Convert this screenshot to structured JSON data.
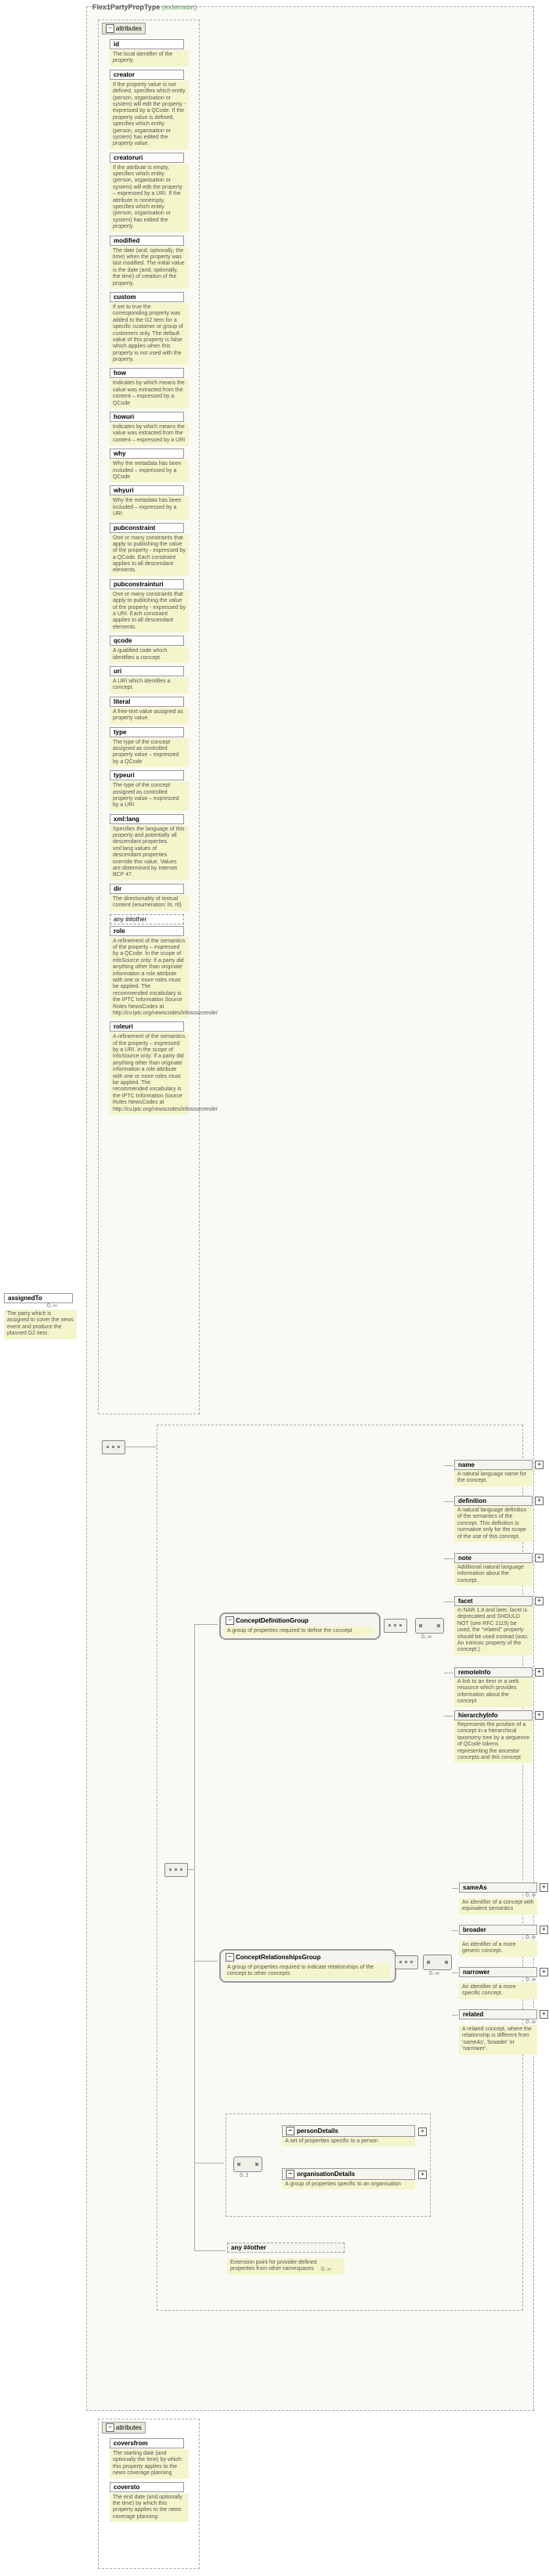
{
  "root": {
    "name": "assignedTo",
    "card": "0..∞",
    "desc": "The party which is assigned to cover the news event and produce the planned G2 item."
  },
  "header": {
    "type_name": "Flex1PartyPropType",
    "ext": "(extension)"
  },
  "attr_section": "attributes",
  "attrs": [
    {
      "n": "id",
      "d": "The local identifier of the property."
    },
    {
      "n": "creator",
      "d": "If the property value is not defined, specifies which entity (person, organisation or system) will edit the property - expressed by a QCode. If the property value is defined, specifies which entity (person, organisation or system) has edited the property value."
    },
    {
      "n": "creatoruri",
      "d": "If the attribute is empty, specifies which entity (person, organisation or system) will edit the property – expressed by a URI. If the attribute is nonempty, specifies which entity (person, organisation or system) has edited the property."
    },
    {
      "n": "modified",
      "d": "The date (and, optionally, the time) when the property was last modified. The initial value is the date (and, optionally, the time) of creation of the property."
    },
    {
      "n": "custom",
      "d": "If set to true the corresponding property was added to the G2 Item for a specific customer or group of customers only. The default value of this property is false which applies when this property is not used with the property."
    },
    {
      "n": "how",
      "d": "Indicates by which means the value was extracted from the content – expressed by a QCode"
    },
    {
      "n": "howuri",
      "d": "Indicates by which means the value was extracted from the content – expressed by a URI"
    },
    {
      "n": "why",
      "d": "Why the metadata has been included – expressed by a QCode"
    },
    {
      "n": "whyuri",
      "d": "Why the metadata has been included – expressed by a URI"
    },
    {
      "n": "pubconstraint",
      "d": "One or many constraints that apply to publishing the value of the property - expressed by a QCode. Each constraint applies to all descendant elements."
    },
    {
      "n": "pubconstrainturi",
      "d": "One or many constraints that apply to publishing the value of the property - expressed by a URI. Each constraint applies to all descendant elements."
    },
    {
      "n": "qcode",
      "d": "A qualified code which identifies a concept."
    },
    {
      "n": "uri",
      "d": "A URI which identifies a concept."
    },
    {
      "n": "literal",
      "d": "A free-text value assigned as property value."
    },
    {
      "n": "type",
      "d": "The type of the concept assigned as controlled property value – expressed by a QCode"
    },
    {
      "n": "typeuri",
      "d": "The type of the concept assigned as controlled property value – expressed by a URI"
    },
    {
      "n": "xml:lang",
      "d": "Specifies the language of this property and potentially all descendant properties. xml:lang values of descendant properties override this value. Values are determined by Internet BCP 47."
    },
    {
      "n": "dir",
      "d": "The directionality of textual content (enumeration: ltr, rtl)"
    },
    {
      "n": "any ##other",
      "d": ""
    },
    {
      "n": "role",
      "d": "A refinement of the semantics of the property – expressed by a QCode. In the scope of infoSource only: If a party did anything other than originate information a role attribute with one or more roles must be applied. The recommended vocabulary is the IPTC Information Source Roles NewsCodes at http://cv.iptc.org/newscodes/infosourcerole/"
    },
    {
      "n": "roleuri",
      "d": "A refinement of the semantics of the property – expressed by a URI. In the scope of infoSource only: If a party did anything other than originate information a role attribute with one or more roles must be applied. The recommended vocabulary is the IPTC Information Source Roles NewsCodes at http://cv.iptc.org/newscodes/infosourcerole/"
    }
  ],
  "groups": {
    "cdef": {
      "name": "ConceptDefinitionGroup",
      "desc": "A group of properties required to define the concept"
    },
    "crel": {
      "name": "ConceptRelationshipsGroup",
      "desc": "A group of properties required to indicate relationships of the concept to other concepts"
    }
  },
  "right": {
    "name": {
      "t": "name",
      "d": "A natural language name for the concept."
    },
    "definition": {
      "t": "definition",
      "d": "A natural language definition of the semantics of the concept. This definition is normative only for the scope of the use of this concept."
    },
    "note": {
      "t": "note",
      "d": "Additional natural language information about the concept."
    },
    "facet": {
      "t": "facet",
      "d": "In NAR 1.8 and later, facet is deprecated and SHOULD NOT (see RFC 2119) be used, the \"related\" property should be used instead (was: An intrinsic property of the concept.)"
    },
    "remoteInfo": {
      "t": "remoteInfo",
      "d": "A link to an item or a web resource which provides information about the concept"
    },
    "hierarchyInfo": {
      "t": "hierarchyInfo",
      "d": "Represents the position of a concept in a hierarchical taxonomy tree by a sequence of QCode tokens representing the ancestor concepts and this concept"
    },
    "sameAs": {
      "t": "sameAs",
      "d": "An identifier of a concept with equivalent semantics"
    },
    "broader": {
      "t": "broader",
      "d": "An identifier of a more generic concept."
    },
    "narrower": {
      "t": "narrower",
      "d": "An identifier of a more specific concept."
    },
    "related": {
      "t": "related",
      "d": "A related concept, where the relationship is different from 'sameAs', 'broader' or 'narrower'."
    }
  },
  "mid": {
    "person": {
      "t": "personDetails",
      "d": "A set of properties specific to a person"
    },
    "org": {
      "t": "organisationDetails",
      "d": "A group of properties specific to an organisation"
    }
  },
  "other": {
    "t": "any ##other",
    "d": "Extension point for provider-defined properties from other namespaces",
    "card": "0..∞"
  },
  "attrs2_section": "attributes",
  "attrs2": [
    {
      "n": "coversfrom",
      "d": "The starting date (and optionally the time) by which this property applies to the news coverage planning"
    },
    {
      "n": "coversto",
      "d": "The end date (and optionally the time) by which this property applies to the news coverage planning"
    }
  ],
  "card_01": "0..1",
  "card_0inf": "0..∞",
  "colors": {
    "bg": "#ffffff",
    "dashed": "#aaaaaa",
    "box_bg": "#f5f5f0",
    "desc_bg": "#f5f5cc",
    "border": "#999999",
    "green": "#5a9b5a"
  }
}
